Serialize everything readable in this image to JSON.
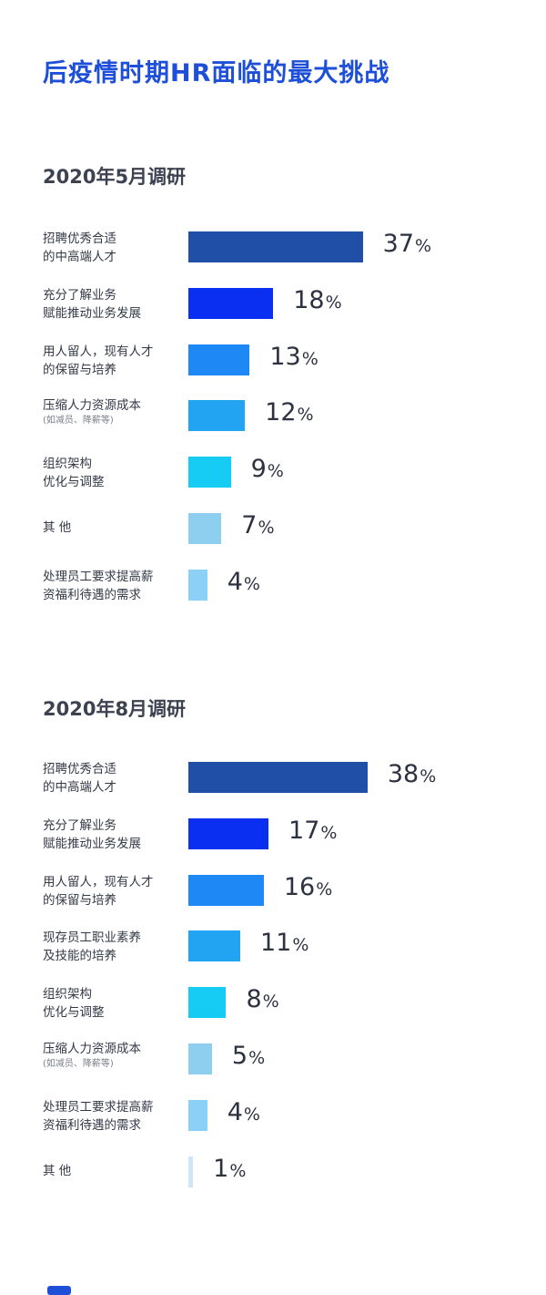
{
  "title": "后疫情时期HR面临的最大挑战",
  "colors": {
    "title": "#1d4fd8",
    "bars": [
      "#1f4fa6",
      "#0a2ff0",
      "#1e88f5",
      "#23a4f2",
      "#16ccf5",
      "#8ecff0",
      "#8cd0f7",
      "#cfe6f7"
    ]
  },
  "chart_data": [
    {
      "type": "bar",
      "orientation": "horizontal",
      "title": "2020年5月调研",
      "unit": "%",
      "categories": [
        [
          "招聘优秀合适",
          "的中高端人才"
        ],
        [
          "充分了解业务",
          "赋能推动业务发展"
        ],
        [
          "用人留人，现有人才",
          "的保留与培养"
        ],
        [
          "压缩人力资源成本",
          "(如减员、降薪等)"
        ],
        [
          "组织架构",
          "优化与调整"
        ],
        [
          "其 他",
          ""
        ],
        [
          "处理员工要求提高薪",
          "资福利待遇的需求"
        ]
      ],
      "values": [
        37,
        18,
        13,
        12,
        9,
        7,
        4
      ]
    },
    {
      "type": "bar",
      "orientation": "horizontal",
      "title": "2020年8月调研",
      "unit": "%",
      "categories": [
        [
          "招聘优秀合适",
          "的中高端人才"
        ],
        [
          "充分了解业务",
          "赋能推动业务发展"
        ],
        [
          "用人留人，现有人才",
          "的保留与培养"
        ],
        [
          "现存员工职业素养",
          "及技能的培养"
        ],
        [
          "组织架构",
          "优化与调整"
        ],
        [
          "压缩人力资源成本",
          "(如减员、降薪等)"
        ],
        [
          "处理员工要求提高薪",
          "资福利待遇的需求"
        ],
        [
          "其 他",
          ""
        ]
      ],
      "values": [
        38,
        17,
        16,
        11,
        8,
        5,
        4,
        1
      ]
    }
  ]
}
